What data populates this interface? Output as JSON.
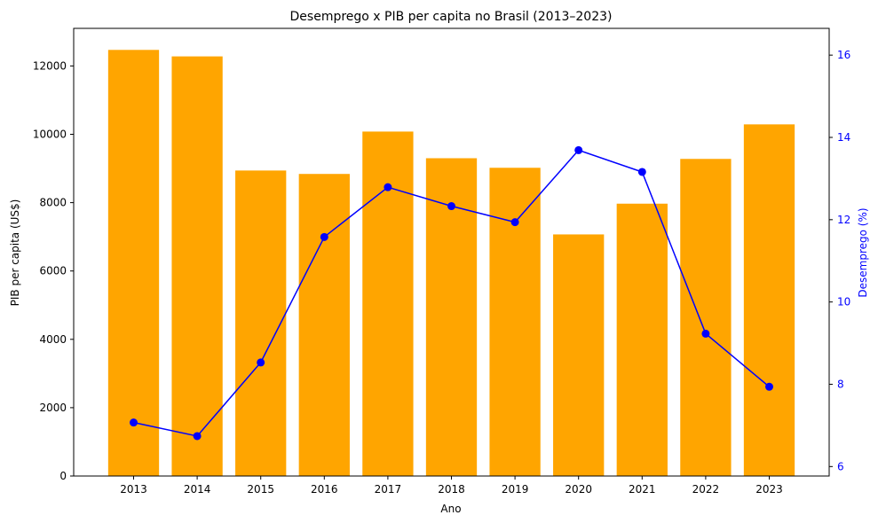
{
  "chart_data": {
    "type": "bar+line",
    "title": "Desemprego x PIB per capita no Brasil (2013–2023)",
    "xlabel": "Ano",
    "ylabel_left": "PIB per capita (US$)",
    "ylabel_right": "Desemprego (%)",
    "categories": [
      "2013",
      "2014",
      "2015",
      "2016",
      "2017",
      "2018",
      "2019",
      "2020",
      "2021",
      "2022",
      "2023"
    ],
    "bar_series": {
      "name": "PIB per capita (US$)",
      "color": "#ffa500",
      "values": [
        12470,
        12280,
        8940,
        8840,
        10080,
        9300,
        9020,
        7070,
        7970,
        9280,
        10290
      ]
    },
    "line_series": {
      "name": "Desemprego (%)",
      "color": "#0000ff",
      "values": [
        7.07,
        6.74,
        8.53,
        11.58,
        12.79,
        12.33,
        11.94,
        13.69,
        13.16,
        9.23,
        7.94
      ]
    },
    "ylim_left": [
      0,
      13100
    ],
    "yticks_left": [
      0,
      2000,
      4000,
      6000,
      8000,
      10000,
      12000
    ],
    "ylim_right": [
      5.77,
      16.65
    ],
    "yticks_right": [
      6,
      8,
      10,
      12,
      14,
      16
    ],
    "grid": false,
    "legend": "none"
  }
}
